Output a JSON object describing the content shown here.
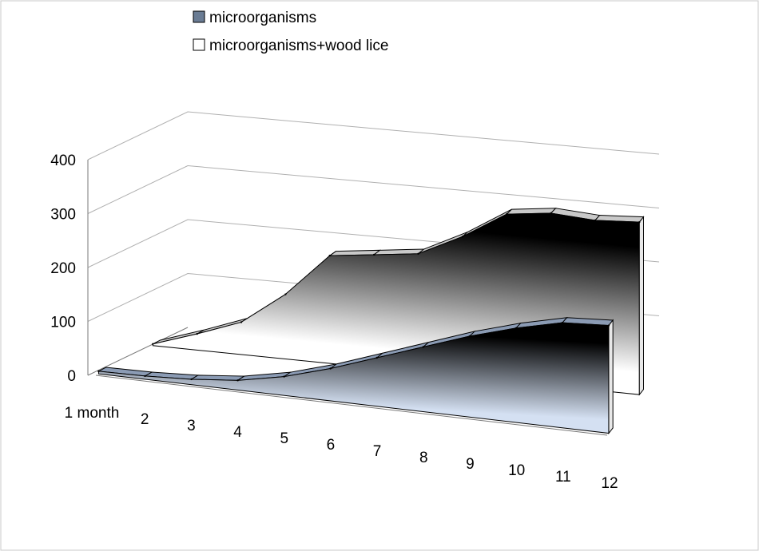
{
  "chart_data": {
    "type": "area",
    "subtype": "3d-area",
    "categories": [
      "1 month",
      "2",
      "3",
      "4",
      "5",
      "6",
      "7",
      "8",
      "9",
      "10",
      "11",
      "12"
    ],
    "series": [
      {
        "name": "microorganisms",
        "values": [
          5,
          6,
          10,
          18,
          35,
          60,
          90,
          120,
          150,
          175,
          195,
          200
        ],
        "fill": "#d4e0f2",
        "fill_dark": "#000000"
      },
      {
        "name": "microorganisms+wood lice",
        "values": [
          3,
          30,
          60,
          120,
          200,
          210,
          220,
          260,
          310,
          320,
          315,
          320
        ],
        "fill": "#ffffff",
        "fill_dark": "#000000"
      }
    ],
    "ylim": [
      0,
      400
    ],
    "yticks": [
      "0",
      "100",
      "200",
      "300",
      "400"
    ],
    "legend_position": "top-left",
    "grid": true
  },
  "colors": {
    "legend_swatch_1": "#6a7c94",
    "legend_swatch_2": "#ffffff",
    "outline": "#000000"
  }
}
